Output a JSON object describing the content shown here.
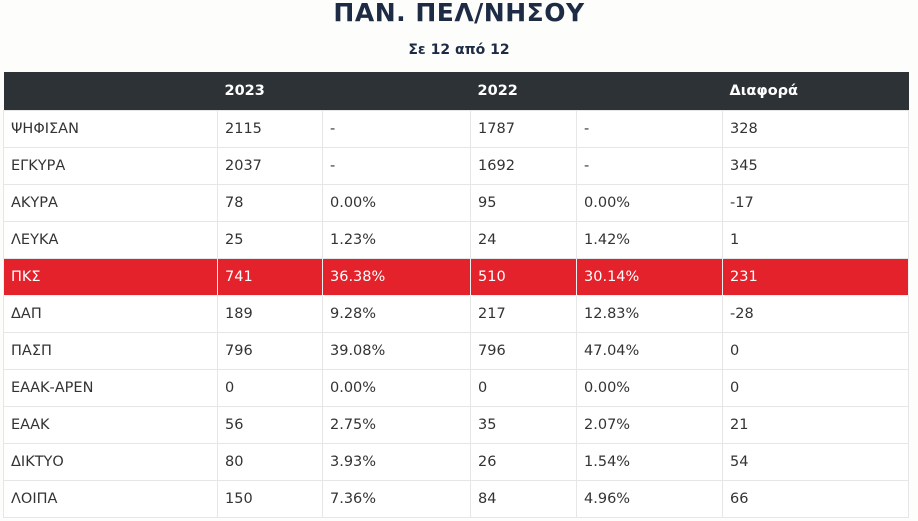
{
  "header": {
    "title": "ΠΑΝ. ΠΕΛ/ΝΗΣΟΥ",
    "subtitle": "Σε 12 από 12"
  },
  "table": {
    "columns": [
      "2023",
      "2022",
      "Διαφορά"
    ],
    "highlight_row": 4,
    "rows": [
      [
        "ΨΗΦΙΣΑΝ",
        "2115",
        "-",
        "1787",
        "-",
        "328"
      ],
      [
        "ΕΓΚΥΡΑ",
        "2037",
        "-",
        "1692",
        "-",
        "345"
      ],
      [
        "ΑΚΥΡΑ",
        "78",
        "0.00%",
        "95",
        "0.00%",
        "-17"
      ],
      [
        "ΛΕΥΚΑ",
        "25",
        "1.23%",
        "24",
        "1.42%",
        "1"
      ],
      [
        "ΠΚΣ",
        "741",
        "36.38%",
        "510",
        "30.14%",
        "231"
      ],
      [
        "ΔΑΠ",
        "189",
        "9.28%",
        "217",
        "12.83%",
        "-28"
      ],
      [
        "ΠΑΣΠ",
        "796",
        "39.08%",
        "796",
        "47.04%",
        "0"
      ],
      [
        "ΕΑΑΚ-ΑΡΕΝ",
        "0",
        "0.00%",
        "0",
        "0.00%",
        "0"
      ],
      [
        "ΕΑΑΚ",
        "56",
        "2.75%",
        "35",
        "2.07%",
        "21"
      ],
      [
        "ΔΙΚΤΥΟ",
        "80",
        "3.93%",
        "26",
        "1.54%",
        "54"
      ],
      [
        "ΛΟΙΠΑ",
        "150",
        "7.36%",
        "84",
        "4.96%",
        "66"
      ]
    ]
  }
}
